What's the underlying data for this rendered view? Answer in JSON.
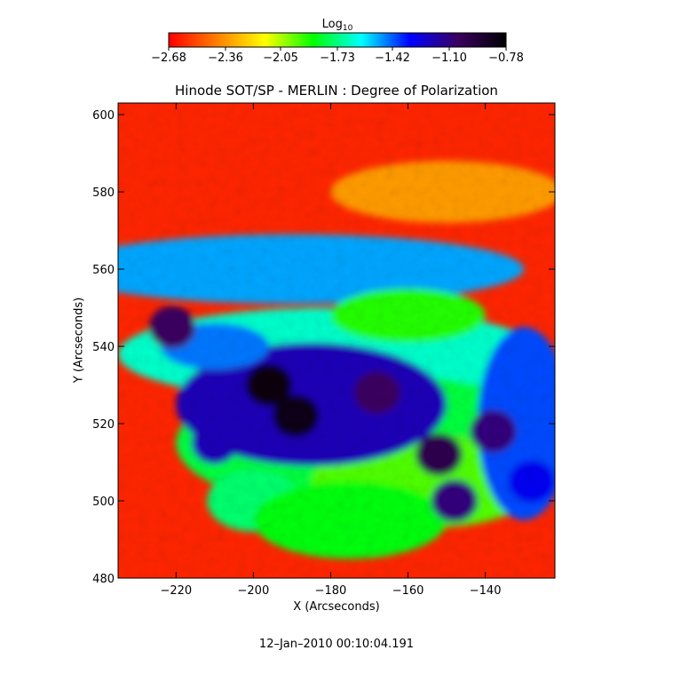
{
  "chart_data": {
    "type": "heatmap",
    "title": "Hinode SOT/SP - MERLIN : Degree of Polarization",
    "xlabel": "X (Arcseconds)",
    "ylabel": "Y (Arcseconds)",
    "xlim": [
      -235,
      -122
    ],
    "ylim": [
      480,
      603
    ],
    "x_ticks": [
      -220,
      -200,
      -180,
      -160,
      -140
    ],
    "y_ticks": [
      480,
      500,
      520,
      540,
      560,
      580,
      600
    ],
    "colorbar": {
      "label": "Log",
      "label_subscript": "10",
      "range": [
        -2.68,
        -0.78
      ],
      "ticks": [
        -2.68,
        -2.36,
        -2.05,
        -1.73,
        -1.42,
        -1.1,
        -0.78
      ],
      "tick_labels": [
        "−2.68",
        "−2.36",
        "−2.05",
        "−1.73",
        "−1.42",
        "−1.10",
        "−0.78"
      ],
      "colormap": [
        "#ff0000",
        "#ff7f00",
        "#ffff00",
        "#00ff00",
        "#00ffff",
        "#0000ff",
        "#3a0060",
        "#000000"
      ]
    },
    "features": [
      {
        "x": -196,
        "y": 530,
        "value": -0.82
      },
      {
        "x": -189,
        "y": 522,
        "value": -0.84
      },
      {
        "x": -168,
        "y": 528,
        "value": -1.05
      },
      {
        "x": -152,
        "y": 512,
        "value": -1.0
      },
      {
        "x": -138,
        "y": 518,
        "value": -1.1
      },
      {
        "x": -128,
        "y": 505,
        "value": -1.3
      },
      {
        "x": -221,
        "y": 545,
        "value": -1.05
      },
      {
        "x": -148,
        "y": 500,
        "value": -1.1
      },
      {
        "x": -210,
        "y": 515,
        "value": -1.2
      }
    ],
    "grid": false
  },
  "footer": {
    "timestamp": "12–Jan–2010 00:10:04.191"
  }
}
